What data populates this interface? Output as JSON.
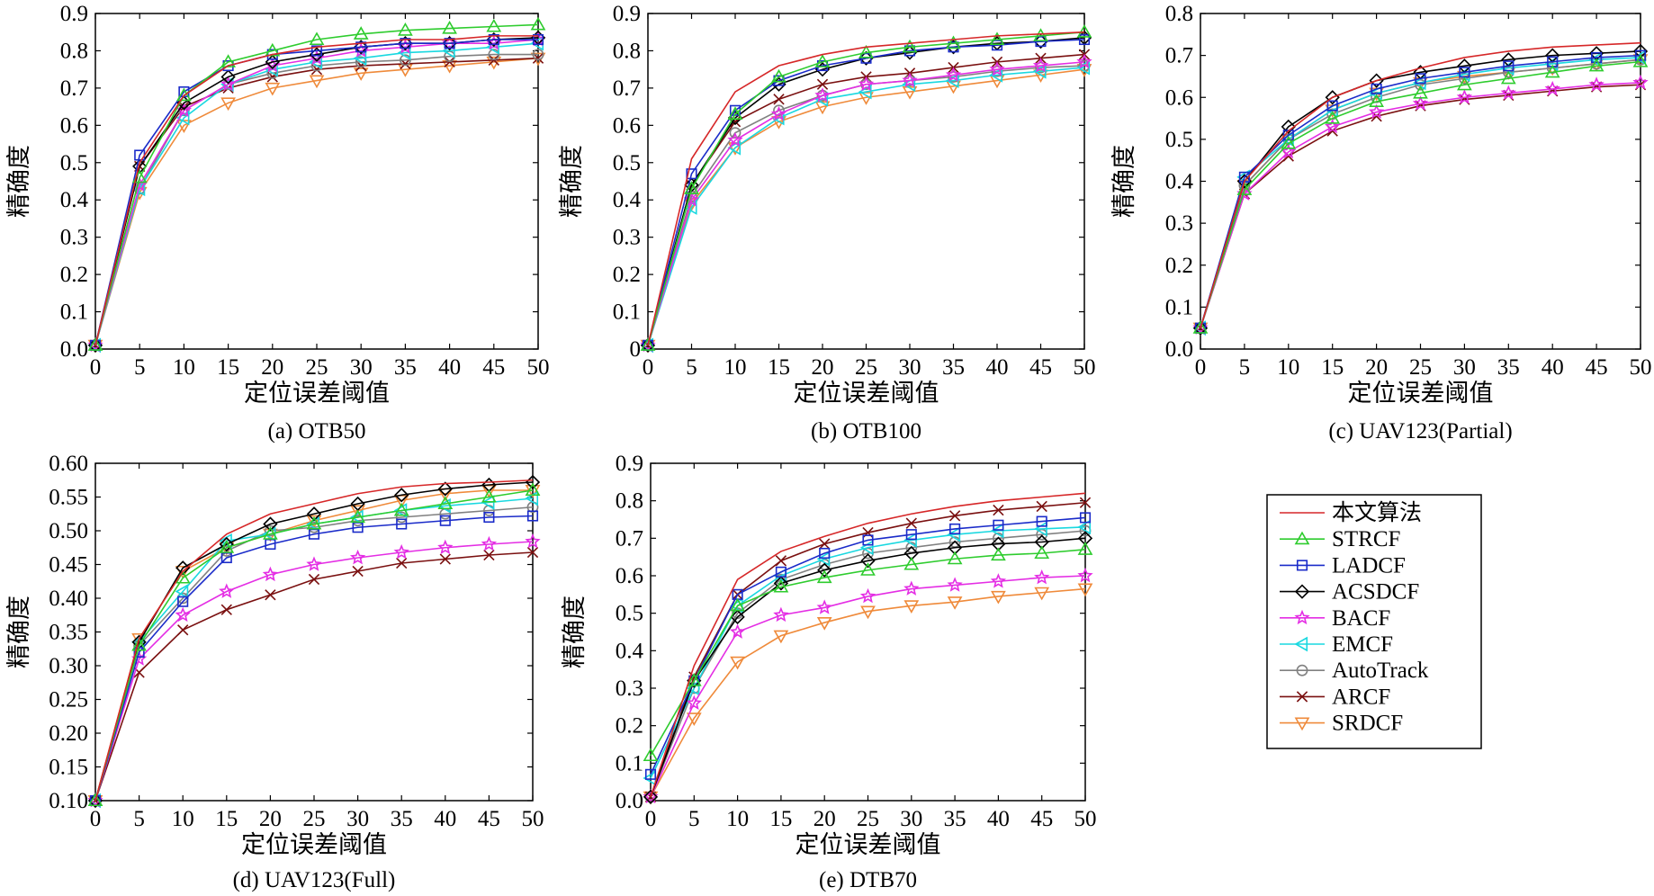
{
  "figure": {
    "charts": [
      {
        "caption": "(a) OTB50",
        "xlabel": "定位误差阈值",
        "ylabel": "精确度"
      },
      {
        "caption": "(b) OTB100",
        "xlabel": "定位误差阈值",
        "ylabel": "精确度"
      },
      {
        "caption": "(c) UAV123(Partial)",
        "xlabel": "定位误差阈值",
        "ylabel": "精确度"
      },
      {
        "caption": "(d) UAV123(Full)",
        "xlabel": "定位误差阈值",
        "ylabel": "精确度"
      },
      {
        "caption": "(e) DTB70",
        "xlabel": "定位误差阈值",
        "ylabel": "精确度"
      }
    ]
  },
  "legend": {
    "placement": "right",
    "items": [
      {
        "label": "本文算法",
        "color": "#d62728",
        "marker": "none"
      },
      {
        "label": "STRCF",
        "color": "#2ecc2e",
        "marker": "triangle-up"
      },
      {
        "label": "LADCF",
        "color": "#1a2bc9",
        "marker": "square"
      },
      {
        "label": "ACSDCF",
        "color": "#000000",
        "marker": "diamond"
      },
      {
        "label": "BACF",
        "color": "#e42ee4",
        "marker": "star"
      },
      {
        "label": "EMCF",
        "color": "#19d8e0",
        "marker": "triangle-left"
      },
      {
        "label": "AutoTrack",
        "color": "#808080",
        "marker": "circle"
      },
      {
        "label": "ARCF",
        "color": "#7a1010",
        "marker": "x"
      },
      {
        "label": "SRDCF",
        "color": "#ef8a3a",
        "marker": "triangle-down"
      }
    ]
  },
  "chart_data": [
    {
      "type": "line",
      "caption": "(a) OTB50",
      "xlabel": "定位误差阈值",
      "ylabel": "精确度",
      "x": [
        0,
        5,
        10,
        15,
        20,
        25,
        30,
        35,
        40,
        45,
        50
      ],
      "xlim": [
        0,
        50
      ],
      "ylim": [
        0,
        0.9
      ],
      "xticks": [
        "0",
        "5",
        "10",
        "15",
        "20",
        "25",
        "30",
        "35",
        "40",
        "45",
        "50"
      ],
      "yticks": [
        "0.0",
        "0.1",
        "0.2",
        "0.3",
        "0.4",
        "0.5",
        "0.6",
        "0.7",
        "0.8",
        "0.9"
      ],
      "grid": false,
      "series": [
        {
          "name": "本文算法",
          "values": [
            0.01,
            0.5,
            0.68,
            0.76,
            0.79,
            0.81,
            0.82,
            0.83,
            0.83,
            0.84,
            0.84
          ]
        },
        {
          "name": "STRCF",
          "values": [
            0.01,
            0.46,
            0.68,
            0.77,
            0.8,
            0.83,
            0.845,
            0.855,
            0.86,
            0.865,
            0.87
          ]
        },
        {
          "name": "LADCF",
          "values": [
            0.01,
            0.52,
            0.69,
            0.76,
            0.79,
            0.8,
            0.81,
            0.82,
            0.82,
            0.83,
            0.83
          ]
        },
        {
          "name": "ACSDCF",
          "values": [
            0.01,
            0.49,
            0.66,
            0.73,
            0.77,
            0.79,
            0.81,
            0.82,
            0.82,
            0.83,
            0.835
          ]
        },
        {
          "name": "BACF",
          "values": [
            0.01,
            0.44,
            0.64,
            0.71,
            0.76,
            0.78,
            0.8,
            0.81,
            0.82,
            0.82,
            0.83
          ]
        },
        {
          "name": "EMCF",
          "values": [
            0.01,
            0.43,
            0.62,
            0.71,
            0.75,
            0.77,
            0.78,
            0.795,
            0.8,
            0.81,
            0.82
          ]
        },
        {
          "name": "AutoTrack",
          "values": [
            0.01,
            0.43,
            0.64,
            0.71,
            0.74,
            0.76,
            0.77,
            0.775,
            0.785,
            0.79,
            0.79
          ]
        },
        {
          "name": "ARCF",
          "values": [
            0.01,
            0.49,
            0.65,
            0.7,
            0.73,
            0.75,
            0.76,
            0.765,
            0.77,
            0.775,
            0.78
          ]
        },
        {
          "name": "SRDCF",
          "values": [
            0.01,
            0.42,
            0.6,
            0.66,
            0.7,
            0.72,
            0.74,
            0.75,
            0.76,
            0.77,
            0.78
          ]
        }
      ]
    },
    {
      "type": "line",
      "caption": "(b) OTB100",
      "xlabel": "定位误差阈值",
      "ylabel": "精确度",
      "x": [
        0,
        5,
        10,
        15,
        20,
        25,
        30,
        35,
        40,
        45,
        50
      ],
      "xlim": [
        0,
        50
      ],
      "ylim": [
        0,
        0.9
      ],
      "xticks": [
        "0",
        "5",
        "10",
        "15",
        "20",
        "25",
        "30",
        "35",
        "40",
        "45",
        "50"
      ],
      "yticks": [
        "0",
        "0.1",
        "0.2",
        "0.3",
        "0.4",
        "0.5",
        "0.6",
        "0.7",
        "0.8",
        "0.9"
      ],
      "grid": false,
      "series": [
        {
          "name": "本文算法",
          "values": [
            0.01,
            0.51,
            0.69,
            0.76,
            0.79,
            0.81,
            0.82,
            0.83,
            0.84,
            0.845,
            0.85
          ]
        },
        {
          "name": "STRCF",
          "values": [
            0.01,
            0.43,
            0.63,
            0.73,
            0.77,
            0.795,
            0.81,
            0.82,
            0.83,
            0.84,
            0.85
          ]
        },
        {
          "name": "LADCF",
          "values": [
            0.01,
            0.47,
            0.64,
            0.72,
            0.76,
            0.78,
            0.8,
            0.81,
            0.815,
            0.825,
            0.83
          ]
        },
        {
          "name": "ACSDCF",
          "values": [
            0.01,
            0.44,
            0.62,
            0.71,
            0.75,
            0.78,
            0.795,
            0.81,
            0.82,
            0.825,
            0.835
          ]
        },
        {
          "name": "BACF",
          "values": [
            0.01,
            0.4,
            0.56,
            0.63,
            0.68,
            0.71,
            0.72,
            0.735,
            0.75,
            0.76,
            0.77
          ]
        },
        {
          "name": "EMCF",
          "values": [
            0.01,
            0.38,
            0.54,
            0.62,
            0.67,
            0.69,
            0.71,
            0.72,
            0.735,
            0.745,
            0.755
          ]
        },
        {
          "name": "AutoTrack",
          "values": [
            0.01,
            0.41,
            0.58,
            0.64,
            0.68,
            0.71,
            0.72,
            0.73,
            0.745,
            0.755,
            0.76
          ]
        },
        {
          "name": "ARCF",
          "values": [
            0.01,
            0.44,
            0.61,
            0.67,
            0.71,
            0.73,
            0.74,
            0.755,
            0.77,
            0.78,
            0.79
          ]
        },
        {
          "name": "SRDCF",
          "values": [
            0.01,
            0.39,
            0.54,
            0.61,
            0.65,
            0.675,
            0.69,
            0.705,
            0.72,
            0.735,
            0.75
          ]
        }
      ]
    },
    {
      "type": "line",
      "caption": "(c) UAV123(Partial)",
      "xlabel": "定位误差阈值",
      "ylabel": "精确度",
      "x": [
        0,
        5,
        10,
        15,
        20,
        25,
        30,
        35,
        40,
        45,
        50
      ],
      "xlim": [
        0,
        50
      ],
      "ylim": [
        0,
        0.8
      ],
      "xticks": [
        "0",
        "5",
        "10",
        "15",
        "20",
        "25",
        "30",
        "35",
        "40",
        "45",
        "50"
      ],
      "yticks": [
        "0.0",
        "0.1",
        "0.2",
        "0.3",
        "0.4",
        "0.5",
        "0.6",
        "0.7",
        "0.8"
      ],
      "grid": false,
      "series": [
        {
          "name": "本文算法",
          "values": [
            0.05,
            0.4,
            0.52,
            0.6,
            0.64,
            0.67,
            0.695,
            0.71,
            0.72,
            0.725,
            0.73
          ]
        },
        {
          "name": "STRCF",
          "values": [
            0.05,
            0.38,
            0.49,
            0.55,
            0.59,
            0.61,
            0.63,
            0.645,
            0.66,
            0.675,
            0.685
          ]
        },
        {
          "name": "LADCF",
          "values": [
            0.05,
            0.41,
            0.51,
            0.58,
            0.62,
            0.645,
            0.66,
            0.675,
            0.685,
            0.695,
            0.7
          ]
        },
        {
          "name": "ACSDCF",
          "values": [
            0.05,
            0.4,
            0.53,
            0.6,
            0.64,
            0.66,
            0.675,
            0.69,
            0.7,
            0.705,
            0.71
          ]
        },
        {
          "name": "BACF",
          "values": [
            0.05,
            0.37,
            0.47,
            0.53,
            0.565,
            0.585,
            0.6,
            0.61,
            0.62,
            0.63,
            0.635
          ]
        },
        {
          "name": "EMCF",
          "values": [
            0.05,
            0.41,
            0.5,
            0.57,
            0.61,
            0.635,
            0.655,
            0.67,
            0.68,
            0.69,
            0.695
          ]
        },
        {
          "name": "AutoTrack",
          "values": [
            0.05,
            0.39,
            0.5,
            0.56,
            0.6,
            0.63,
            0.645,
            0.66,
            0.67,
            0.68,
            0.69
          ]
        },
        {
          "name": "ARCF",
          "values": [
            0.05,
            0.37,
            0.46,
            0.52,
            0.555,
            0.58,
            0.595,
            0.605,
            0.615,
            0.625,
            0.63
          ]
        },
        {
          "name": "SRDCF",
          "values": [
            0.05,
            0.39,
            0.5,
            0.57,
            0.61,
            0.635,
            0.65,
            0.66,
            0.67,
            0.68,
            0.69
          ]
        }
      ]
    },
    {
      "type": "line",
      "caption": "(d) UAV123(Full)",
      "xlabel": "定位误差阈值",
      "ylabel": "精确度",
      "x": [
        0,
        5,
        10,
        15,
        20,
        25,
        30,
        35,
        40,
        45,
        50
      ],
      "xlim": [
        0,
        50
      ],
      "ylim": [
        0.1,
        0.6
      ],
      "xticks": [
        "0",
        "5",
        "10",
        "15",
        "20",
        "25",
        "30",
        "35",
        "40",
        "45",
        "50"
      ],
      "yticks": [
        "0.10",
        "0.15",
        "0.20",
        "0.25",
        "0.30",
        "0.35",
        "0.40",
        "0.45",
        "0.50",
        "0.55",
        "0.60"
      ],
      "grid": false,
      "series": [
        {
          "name": "本文算法",
          "values": [
            0.1,
            0.34,
            0.44,
            0.495,
            0.525,
            0.54,
            0.555,
            0.565,
            0.57,
            0.572,
            0.575
          ]
        },
        {
          "name": "STRCF",
          "values": [
            0.1,
            0.33,
            0.43,
            0.475,
            0.495,
            0.51,
            0.52,
            0.53,
            0.54,
            0.55,
            0.56
          ]
        },
        {
          "name": "LADCF",
          "values": [
            0.1,
            0.32,
            0.395,
            0.46,
            0.48,
            0.495,
            0.505,
            0.51,
            0.515,
            0.52,
            0.522
          ]
        },
        {
          "name": "ACSDCF",
          "values": [
            0.1,
            0.335,
            0.445,
            0.48,
            0.51,
            0.525,
            0.54,
            0.553,
            0.562,
            0.568,
            0.572
          ]
        },
        {
          "name": "BACF",
          "values": [
            0.1,
            0.31,
            0.375,
            0.41,
            0.435,
            0.45,
            0.46,
            0.468,
            0.475,
            0.48,
            0.484
          ]
        },
        {
          "name": "EMCF",
          "values": [
            0.1,
            0.335,
            0.41,
            0.485,
            0.495,
            0.51,
            0.52,
            0.53,
            0.537,
            0.542,
            0.548
          ]
        },
        {
          "name": "AutoTrack",
          "values": [
            0.1,
            0.33,
            0.4,
            0.47,
            0.5,
            0.505,
            0.515,
            0.52,
            0.525,
            0.53,
            0.535
          ]
        },
        {
          "name": "ARCF",
          "values": [
            0.1,
            0.29,
            0.353,
            0.383,
            0.405,
            0.428,
            0.44,
            0.452,
            0.458,
            0.464,
            0.468
          ]
        },
        {
          "name": "SRDCF",
          "values": [
            0.1,
            0.34,
            0.44,
            0.475,
            0.495,
            0.515,
            0.53,
            0.545,
            0.555,
            0.56,
            0.56
          ]
        }
      ]
    },
    {
      "type": "line",
      "caption": "(e) DTB70",
      "xlabel": "定位误差阈值",
      "ylabel": "精确度",
      "x": [
        0,
        5,
        10,
        15,
        20,
        25,
        30,
        35,
        40,
        45,
        50
      ],
      "xlim": [
        0,
        50
      ],
      "ylim": [
        0,
        0.9
      ],
      "xticks": [
        "0",
        "5",
        "10",
        "15",
        "20",
        "25",
        "30",
        "35",
        "40",
        "45",
        "50"
      ],
      "yticks": [
        "0.0",
        "0.1",
        "0.2",
        "0.3",
        "0.4",
        "0.5",
        "0.6",
        "0.7",
        "0.8",
        "0.9"
      ],
      "grid": false,
      "series": [
        {
          "name": "本文算法",
          "values": [
            0.01,
            0.36,
            0.59,
            0.665,
            0.705,
            0.74,
            0.765,
            0.785,
            0.8,
            0.81,
            0.82
          ]
        },
        {
          "name": "STRCF",
          "values": [
            0.12,
            0.32,
            0.52,
            0.57,
            0.595,
            0.615,
            0.63,
            0.645,
            0.655,
            0.66,
            0.67
          ]
        },
        {
          "name": "LADCF",
          "values": [
            0.07,
            0.32,
            0.55,
            0.61,
            0.66,
            0.695,
            0.71,
            0.725,
            0.735,
            0.745,
            0.755
          ]
        },
        {
          "name": "ACSDCF",
          "values": [
            0.01,
            0.32,
            0.49,
            0.58,
            0.615,
            0.64,
            0.66,
            0.675,
            0.685,
            0.69,
            0.7
          ]
        },
        {
          "name": "BACF",
          "values": [
            0.01,
            0.26,
            0.45,
            0.495,
            0.515,
            0.545,
            0.565,
            0.575,
            0.585,
            0.595,
            0.6
          ]
        },
        {
          "name": "EMCF",
          "values": [
            0.06,
            0.3,
            0.52,
            0.6,
            0.645,
            0.675,
            0.695,
            0.71,
            0.72,
            0.725,
            0.73
          ]
        },
        {
          "name": "AutoTrack",
          "values": [
            0.01,
            0.3,
            0.5,
            0.59,
            0.63,
            0.66,
            0.675,
            0.69,
            0.7,
            0.71,
            0.72
          ]
        },
        {
          "name": "ARCF",
          "values": [
            0.01,
            0.33,
            0.55,
            0.64,
            0.685,
            0.715,
            0.74,
            0.76,
            0.775,
            0.785,
            0.795
          ]
        },
        {
          "name": "SRDCF",
          "values": [
            0.01,
            0.22,
            0.37,
            0.44,
            0.475,
            0.505,
            0.52,
            0.53,
            0.545,
            0.555,
            0.565
          ]
        }
      ]
    }
  ]
}
